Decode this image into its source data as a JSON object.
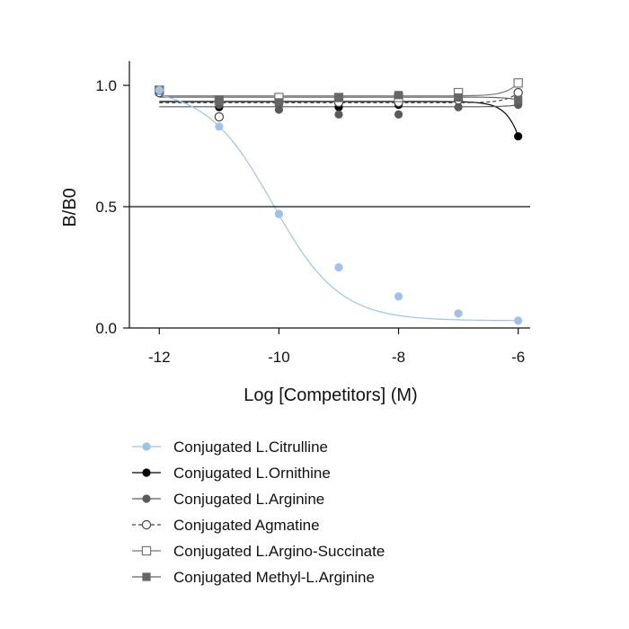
{
  "chart_data": {
    "type": "scatter",
    "xlabel": "Log [Competitors] (M)",
    "ylabel": "B/B0",
    "xlim": [
      -12.5,
      -5.8
    ],
    "ylim": [
      0.0,
      1.1
    ],
    "x_ticks": [
      "-12",
      "-10",
      "-8",
      "-6"
    ],
    "y_ticks": [
      "0.0",
      "0.5",
      "1.0"
    ],
    "x": [
      -12,
      -11,
      -10,
      -9,
      -8,
      -7,
      -6
    ],
    "reference_line": 0.5,
    "legend_position": "bottom",
    "grid": false,
    "series": [
      {
        "name": "Conjugated L.Citrulline",
        "values": [
          0.98,
          0.83,
          0.47,
          0.25,
          0.13,
          0.06,
          0.03
        ],
        "marker": "filled-circle",
        "color": "#9DC3EC",
        "line_style": "solid",
        "fit": {
          "top": 0.99,
          "bottom": 0.03,
          "log_ic50": -10.1,
          "hill_slope": -0.78
        }
      },
      {
        "name": "Conjugated L.Ornithine",
        "values": [
          0.97,
          0.91,
          0.94,
          0.91,
          0.92,
          0.95,
          0.79
        ],
        "marker": "filled-circle",
        "color": "#000000",
        "line_style": "solid"
      },
      {
        "name": "Conjugated L.Arginine",
        "values": [
          0.98,
          0.92,
          0.9,
          0.88,
          0.88,
          0.91,
          0.92
        ],
        "marker": "filled-circle",
        "color": "#5a5a5a",
        "line_style": "solid"
      },
      {
        "name": "Conjugated Agmatine",
        "values": [
          0.97,
          0.87,
          0.93,
          0.93,
          0.93,
          0.94,
          0.97
        ],
        "marker": "open-circle",
        "color": "#444444",
        "line_style": "dashed"
      },
      {
        "name": "Conjugated L.Argino-Succinate",
        "values": [
          0.98,
          0.94,
          0.95,
          0.95,
          0.95,
          0.97,
          1.01
        ],
        "marker": "open-square",
        "color": "#777777",
        "line_style": "solid"
      },
      {
        "name": "Conjugated Methyl-L.Arginine",
        "values": [
          0.98,
          0.94,
          0.93,
          0.95,
          0.96,
          0.95,
          0.94
        ],
        "marker": "filled-square",
        "color": "#666666",
        "line_style": "solid"
      }
    ]
  }
}
